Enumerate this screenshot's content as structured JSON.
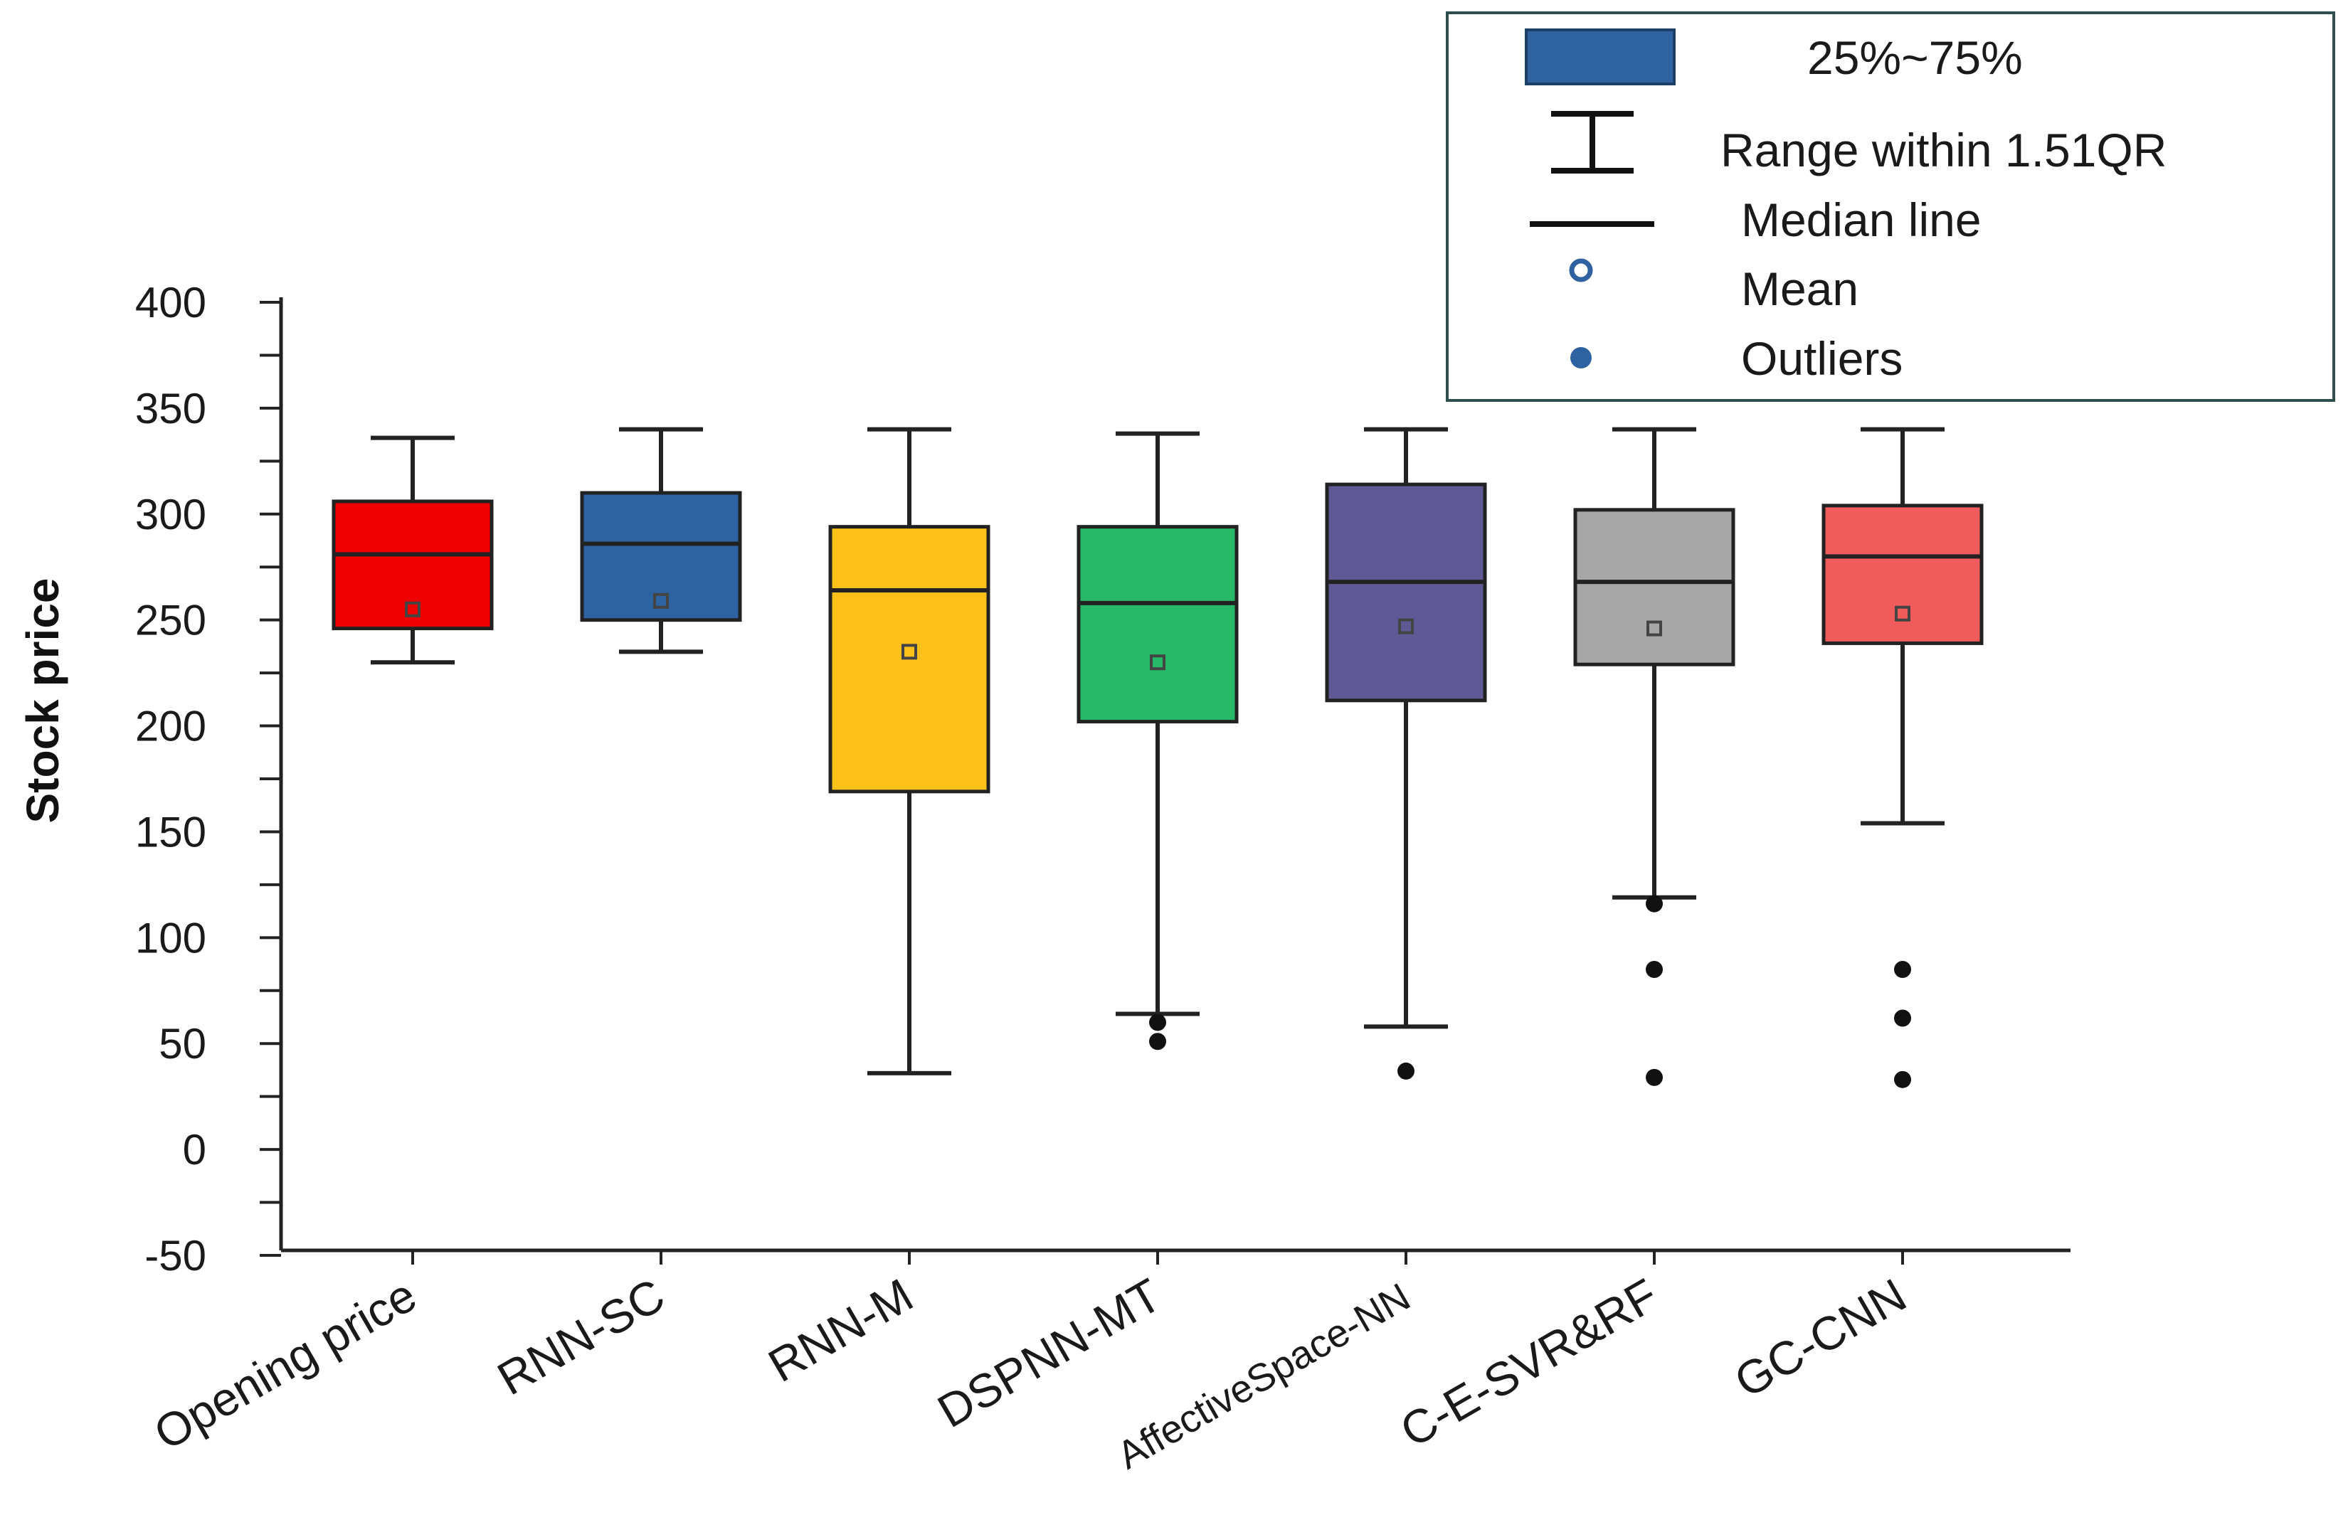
{
  "chart_data": {
    "type": "box",
    "title": "",
    "xlabel": "",
    "ylabel": "Stock price",
    "ylim": [
      -50,
      400
    ],
    "yticks": [
      -50,
      0,
      50,
      100,
      150,
      200,
      250,
      300,
      350,
      400
    ],
    "categories": [
      "Opening price",
      "RNN-SC",
      "RNN-M",
      "DSPNN-MT",
      "AffectiveSpace-NN",
      "C-E-SVR&RF",
      "GC-CNN"
    ],
    "boxes": [
      {
        "name": "Opening price",
        "color": "#ee0000",
        "whisker_low": 230,
        "q1": 246,
        "median": 281,
        "q3": 306,
        "whisker_high": 336,
        "mean": 255,
        "outliers": []
      },
      {
        "name": "RNN-SC",
        "color": "#2e62a0",
        "whisker_low": 235,
        "q1": 250,
        "median": 286,
        "q3": 310,
        "whisker_high": 340,
        "mean": 259,
        "outliers": []
      },
      {
        "name": "RNN-M",
        "color": "#fbc01a",
        "whisker_low": 36,
        "q1": 169,
        "median": 264,
        "q3": 294,
        "whisker_high": 340,
        "mean": 235,
        "outliers": []
      },
      {
        "name": "DSPNN-MT",
        "color": "#27b868",
        "whisker_low": 64,
        "q1": 202,
        "median": 258,
        "q3": 294,
        "whisker_high": 338,
        "mean": 230,
        "outliers": [
          60,
          51
        ]
      },
      {
        "name": "AffectiveSpace-NN",
        "color": "#5f5a96",
        "whisker_low": 58,
        "q1": 212,
        "median": 268,
        "q3": 314,
        "whisker_high": 340,
        "mean": 247,
        "outliers": [
          37
        ]
      },
      {
        "name": "C-E-SVR&RF",
        "color": "#a7a7a7",
        "whisker_low": 119,
        "q1": 229,
        "median": 268,
        "q3": 302,
        "whisker_high": 340,
        "mean": 246,
        "outliers": [
          116,
          85,
          34
        ]
      },
      {
        "name": "GC-CNN",
        "color": "#f05b5b",
        "whisker_low": 154,
        "q1": 239,
        "median": 280,
        "q3": 304,
        "whisker_high": 340,
        "mean": 253,
        "outliers": [
          85,
          62,
          33
        ]
      }
    ],
    "legend": {
      "position": "top-right",
      "items": [
        {
          "symbol": "box",
          "label": "25%~75%",
          "color": "#2e62a0"
        },
        {
          "symbol": "range",
          "label": "Range within 1.51QR",
          "color": "#111111"
        },
        {
          "symbol": "line",
          "label": "Median line",
          "color": "#111111"
        },
        {
          "symbol": "mean",
          "label": "Mean",
          "color": "#2e62a0"
        },
        {
          "symbol": "outlier",
          "label": "Outliers",
          "color": "#2e62a0"
        }
      ]
    }
  }
}
